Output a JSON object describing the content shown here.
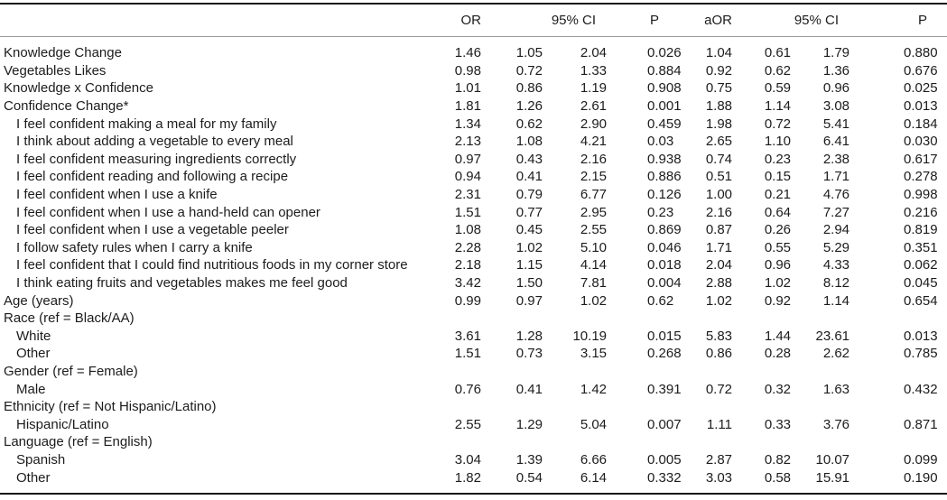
{
  "header": {
    "or": "OR",
    "ci_unadjusted": "95% CI",
    "p_unadjusted": "P",
    "aor": "aOR",
    "ci_adjusted": "95% CI",
    "p_adjusted": "P"
  },
  "rows": [
    {
      "label": "Knowledge Change",
      "indent": false,
      "values": [
        "1.46",
        "1.05",
        "2.04",
        "0.026",
        "1.04",
        "0.61",
        "1.79",
        "0.880"
      ]
    },
    {
      "label": "Vegetables Likes",
      "indent": false,
      "values": [
        "0.98",
        "0.72",
        "1.33",
        "0.884",
        "0.92",
        "0.62",
        "1.36",
        "0.676"
      ]
    },
    {
      "label": "Knowledge x Confidence",
      "indent": false,
      "values": [
        "1.01",
        "0.86",
        "1.19",
        "0.908",
        "0.75",
        "0.59",
        "0.96",
        "0.025"
      ]
    },
    {
      "label": "Confidence Change*",
      "indent": false,
      "values": [
        "1.81",
        "1.26",
        "2.61",
        "0.001",
        "1.88",
        "1.14",
        "3.08",
        "0.013"
      ]
    },
    {
      "label": "I feel confident making a meal for my family",
      "indent": true,
      "values": [
        "1.34",
        "0.62",
        "2.90",
        "0.459",
        "1.98",
        "0.72",
        "5.41",
        "0.184"
      ]
    },
    {
      "label": "I think about adding a vegetable to every meal",
      "indent": true,
      "values": [
        "2.13",
        "1.08",
        "4.21",
        "0.03",
        "2.65",
        "1.10",
        "6.41",
        "0.030"
      ]
    },
    {
      "label": "I feel confident measuring ingredients correctly",
      "indent": true,
      "values": [
        "0.97",
        "0.43",
        "2.16",
        "0.938",
        "0.74",
        "0.23",
        "2.38",
        "0.617"
      ]
    },
    {
      "label": "I feel confident reading and following a recipe",
      "indent": true,
      "values": [
        "0.94",
        "0.41",
        "2.15",
        "0.886",
        "0.51",
        "0.15",
        "1.71",
        "0.278"
      ]
    },
    {
      "label": "I feel confident when I use a knife",
      "indent": true,
      "values": [
        "2.31",
        "0.79",
        "6.77",
        "0.126",
        "1.00",
        "0.21",
        "4.76",
        "0.998"
      ]
    },
    {
      "label": "I feel confident when I use a hand-held can opener",
      "indent": true,
      "values": [
        "1.51",
        "0.77",
        "2.95",
        "0.23",
        "2.16",
        "0.64",
        "7.27",
        "0.216"
      ]
    },
    {
      "label": "I feel confident when I use a vegetable peeler",
      "indent": true,
      "values": [
        "1.08",
        "0.45",
        "2.55",
        "0.869",
        "0.87",
        "0.26",
        "2.94",
        "0.819"
      ]
    },
    {
      "label": "I follow safety rules when I carry a knife",
      "indent": true,
      "values": [
        "2.28",
        "1.02",
        "5.10",
        "0.046",
        "1.71",
        "0.55",
        "5.29",
        "0.351"
      ]
    },
    {
      "label": "I feel confident that I could find nutritious foods in my corner store",
      "indent": true,
      "values": [
        "2.18",
        "1.15",
        "4.14",
        "0.018",
        "2.04",
        "0.96",
        "4.33",
        "0.062"
      ]
    },
    {
      "label": "I think eating fruits and vegetables makes me feel good",
      "indent": true,
      "values": [
        "3.42",
        "1.50",
        "7.81",
        "0.004",
        "2.88",
        "1.02",
        "8.12",
        "0.045"
      ]
    },
    {
      "label": "Age (years)",
      "indent": false,
      "values": [
        "0.99",
        "0.97",
        "1.02",
        "0.62",
        "1.02",
        "0.92",
        "1.14",
        "0.654"
      ]
    },
    {
      "label": "Race (ref = Black/AA)",
      "indent": false,
      "values": null
    },
    {
      "label": "White",
      "indent": true,
      "values": [
        "3.61",
        "1.28",
        "10.19",
        "0.015",
        "5.83",
        "1.44",
        "23.61",
        "0.013"
      ]
    },
    {
      "label": "Other",
      "indent": true,
      "values": [
        "1.51",
        "0.73",
        "3.15",
        "0.268",
        "0.86",
        "0.28",
        "2.62",
        "0.785"
      ]
    },
    {
      "label": "Gender (ref = Female)",
      "indent": false,
      "values": null
    },
    {
      "label": "Male",
      "indent": true,
      "values": [
        "0.76",
        "0.41",
        "1.42",
        "0.391",
        "0.72",
        "0.32",
        "1.63",
        "0.432"
      ]
    },
    {
      "label": "Ethnicity (ref = Not Hispanic/Latino)",
      "indent": false,
      "values": null
    },
    {
      "label": "Hispanic/Latino",
      "indent": true,
      "values": [
        "2.55",
        "1.29",
        "5.04",
        "0.007",
        "1.11",
        "0.33",
        "3.76",
        "0.871"
      ]
    },
    {
      "label": "Language (ref = English)",
      "indent": false,
      "values": null
    },
    {
      "label": "Spanish",
      "indent": true,
      "values": [
        "3.04",
        "1.39",
        "6.66",
        "0.005",
        "2.87",
        "0.82",
        "10.07",
        "0.099"
      ]
    },
    {
      "label": "Other",
      "indent": true,
      "values": [
        "1.82",
        "0.54",
        "6.14",
        "0.332",
        "3.03",
        "0.58",
        "15.91",
        "0.190"
      ]
    }
  ]
}
